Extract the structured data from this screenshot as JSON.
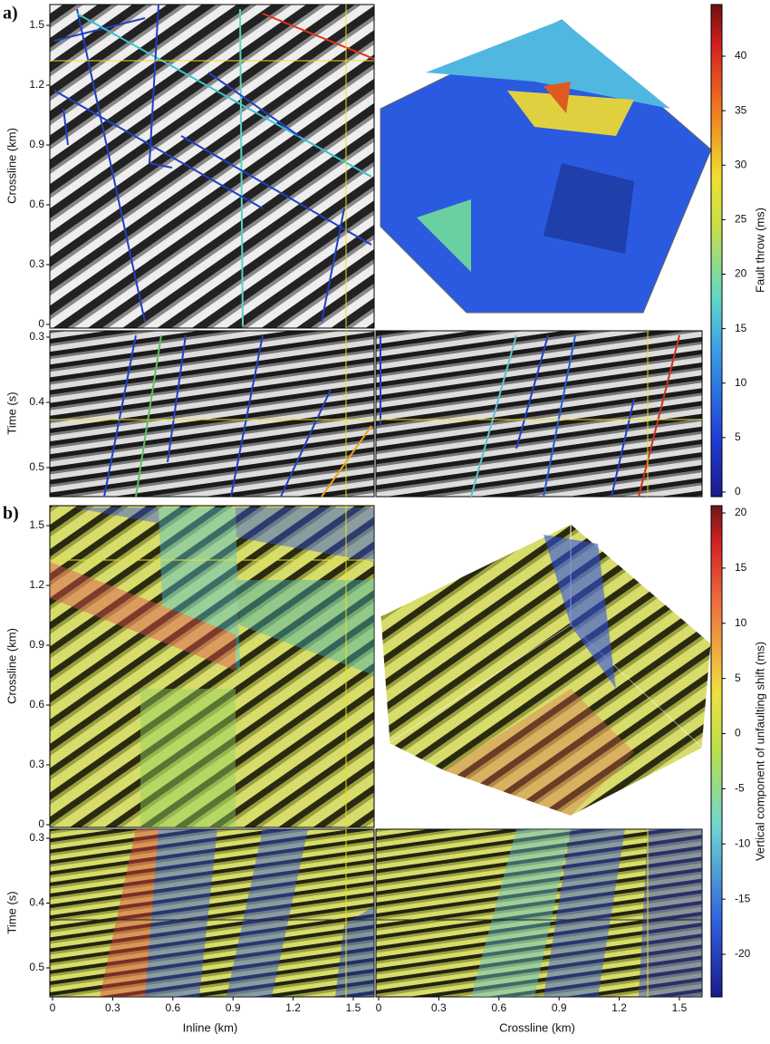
{
  "panels": [
    {
      "label": "a)",
      "map": {
        "ylabel": "Crossline (km)",
        "yticks": [
          0,
          0.3,
          0.6,
          0.9,
          1.2,
          1.5
        ]
      },
      "section": {
        "ylabel": "Time (s)",
        "yticks": [
          0.3,
          0.4,
          0.5
        ]
      },
      "colorbar": {
        "label": "Fault throw (ms)",
        "ticks": [
          0,
          5,
          10,
          15,
          20,
          25,
          30,
          35,
          40
        ]
      }
    },
    {
      "label": "b)",
      "map": {
        "ylabel": "Crossline (km)",
        "yticks": [
          0,
          0.3,
          0.6,
          0.9,
          1.2,
          1.5
        ]
      },
      "section": {
        "ylabel": "Time (s)",
        "yticks": [
          0.3,
          0.4,
          0.5
        ]
      },
      "colorbar": {
        "label": "Vertical component of unfaulting shift (ms)",
        "ticks": [
          -20,
          -15,
          -10,
          -5,
          0,
          5,
          10,
          15,
          20
        ]
      }
    }
  ],
  "xaxes": [
    {
      "label": "Inline (km)",
      "ticks": [
        0,
        0.3,
        0.6,
        0.9,
        1.2,
        1.5
      ]
    },
    {
      "label": "Crossline (km)",
      "ticks": [
        0,
        0.3,
        0.6,
        0.9,
        1.2,
        1.5
      ]
    }
  ]
}
